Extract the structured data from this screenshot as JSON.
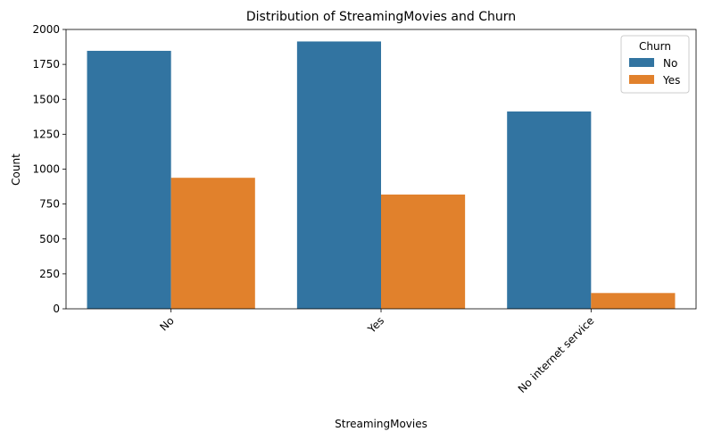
{
  "chart_data": {
    "type": "bar",
    "title": "Distribution of StreamingMovies and Churn",
    "xlabel": "StreamingMovies",
    "ylabel": "Count",
    "categories": [
      "No",
      "Yes",
      "No internet service"
    ],
    "series": [
      {
        "name": "No",
        "values": [
          1847,
          1914,
          1413
        ],
        "color": "#3274a1"
      },
      {
        "name": "Yes",
        "values": [
          938,
          818,
          113
        ],
        "color": "#e1812c"
      }
    ],
    "ylim": [
      0,
      2000
    ],
    "yticks": [
      0,
      250,
      500,
      750,
      1000,
      1250,
      1500,
      1750,
      2000
    ],
    "legend": {
      "title": "Churn",
      "placement": "top-right"
    },
    "grid": false
  }
}
